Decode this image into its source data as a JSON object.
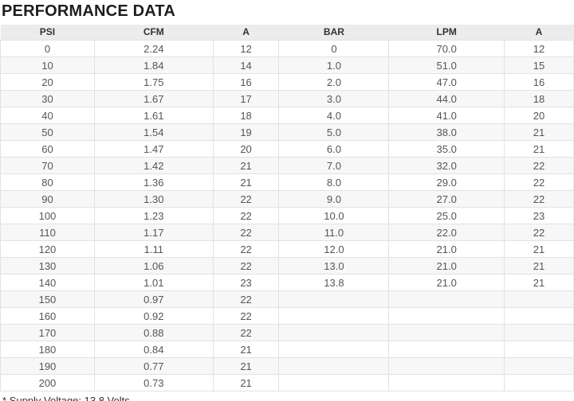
{
  "title": "PERFORMANCE DATA",
  "footnote": "* Supply Voltage: 13.8 Volts",
  "colors": {
    "title_text": "#1d1d1d",
    "header_bg": "#ececec",
    "header_text": "#333333",
    "cell_text": "#555555",
    "row_stripe": "#f7f7f7",
    "border": "#e2e2e2",
    "page_bg": "#ffffff"
  },
  "chart_data": {
    "type": "table",
    "title": "PERFORMANCE DATA",
    "columns": [
      "PSI",
      "CFM",
      "A",
      "BAR",
      "LPM",
      "A"
    ],
    "column_widths_pct": [
      16.4,
      20.7,
      11.5,
      19.2,
      20.1,
      12.1
    ],
    "rows": [
      [
        "0",
        "2.24",
        "12",
        "0",
        "70.0",
        "12"
      ],
      [
        "10",
        "1.84",
        "14",
        "1.0",
        "51.0",
        "15"
      ],
      [
        "20",
        "1.75",
        "16",
        "2.0",
        "47.0",
        "16"
      ],
      [
        "30",
        "1.67",
        "17",
        "3.0",
        "44.0",
        "18"
      ],
      [
        "40",
        "1.61",
        "18",
        "4.0",
        "41.0",
        "20"
      ],
      [
        "50",
        "1.54",
        "19",
        "5.0",
        "38.0",
        "21"
      ],
      [
        "60",
        "1.47",
        "20",
        "6.0",
        "35.0",
        "21"
      ],
      [
        "70",
        "1.42",
        "21",
        "7.0",
        "32.0",
        "22"
      ],
      [
        "80",
        "1.36",
        "21",
        "8.0",
        "29.0",
        "22"
      ],
      [
        "90",
        "1.30",
        "22",
        "9.0",
        "27.0",
        "22"
      ],
      [
        "100",
        "1.23",
        "22",
        "10.0",
        "25.0",
        "23"
      ],
      [
        "110",
        "1.17",
        "22",
        "11.0",
        "22.0",
        "22"
      ],
      [
        "120",
        "1.11",
        "22",
        "12.0",
        "21.0",
        "21"
      ],
      [
        "130",
        "1.06",
        "22",
        "13.0",
        "21.0",
        "21"
      ],
      [
        "140",
        "1.01",
        "23",
        "13.8",
        "21.0",
        "21"
      ],
      [
        "150",
        "0.97",
        "22",
        "",
        "",
        ""
      ],
      [
        "160",
        "0.92",
        "22",
        "",
        "",
        ""
      ],
      [
        "170",
        "0.88",
        "22",
        "",
        "",
        ""
      ],
      [
        "180",
        "0.84",
        "21",
        "",
        "",
        ""
      ],
      [
        "190",
        "0.77",
        "21",
        "",
        "",
        ""
      ],
      [
        "200",
        "0.73",
        "21",
        "",
        "",
        ""
      ]
    ],
    "footnote": "* Supply Voltage: 13.8 Volts"
  }
}
